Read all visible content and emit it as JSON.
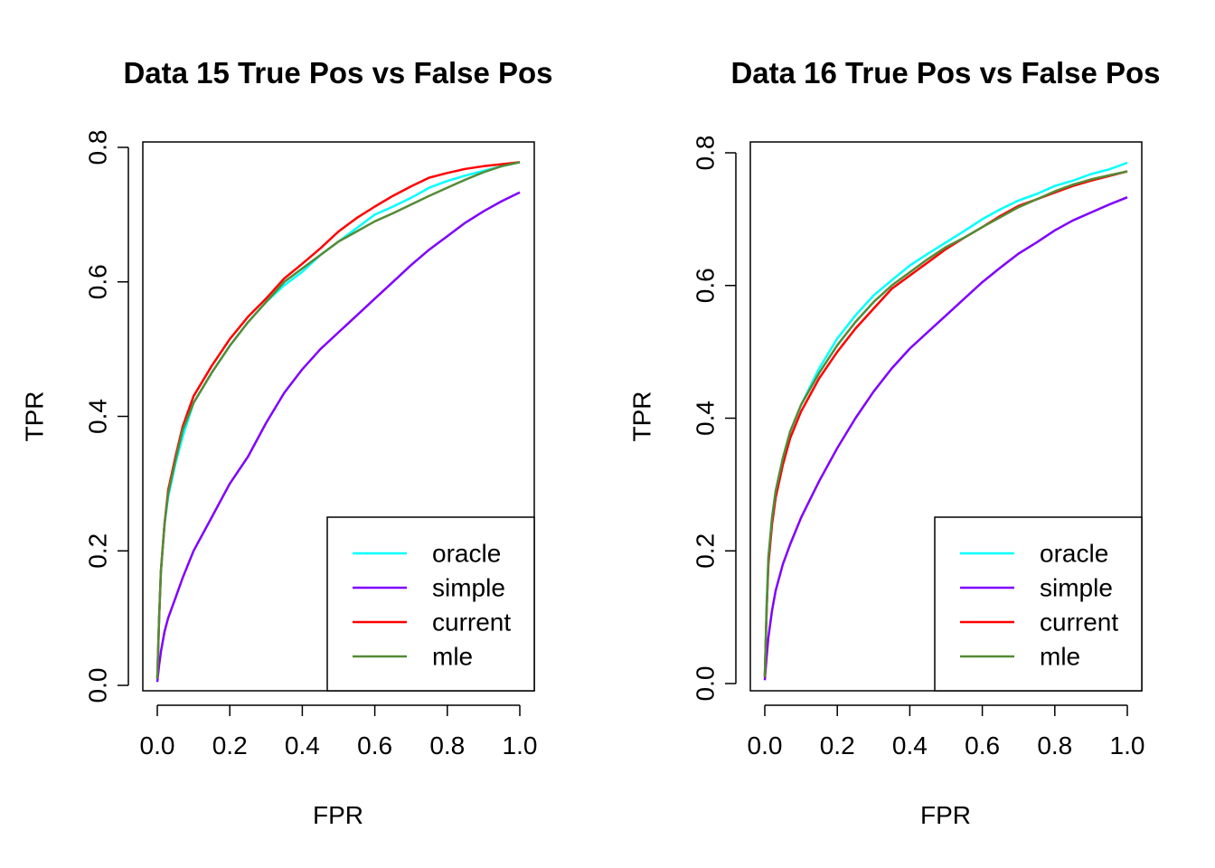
{
  "chart_data": [
    {
      "type": "line",
      "title": "Data 15 True Pos vs False Pos",
      "xlabel": "FPR",
      "ylabel": "TPR",
      "xlim": [
        0.0,
        1.0
      ],
      "ylim": [
        0.0,
        0.8
      ],
      "xticks": [
        "0.0",
        "0.2",
        "0.4",
        "0.6",
        "0.8",
        "1.0"
      ],
      "yticks": [
        "0.0",
        "0.2",
        "0.4",
        "0.6",
        "0.8"
      ],
      "grid": false,
      "legend": "bottom-right",
      "series": [
        {
          "name": "oracle",
          "color": "#00FFFF",
          "x": [
            0,
            0.005,
            0.01,
            0.02,
            0.03,
            0.05,
            0.07,
            0.1,
            0.15,
            0.2,
            0.25,
            0.3,
            0.35,
            0.4,
            0.45,
            0.5,
            0.55,
            0.6,
            0.65,
            0.7,
            0.75,
            0.8,
            0.85,
            0.9,
            0.95,
            1.0
          ],
          "y": [
            0.01,
            0.1,
            0.17,
            0.24,
            0.28,
            0.33,
            0.37,
            0.42,
            0.465,
            0.505,
            0.54,
            0.57,
            0.595,
            0.615,
            0.64,
            0.66,
            0.68,
            0.7,
            0.712,
            0.725,
            0.74,
            0.75,
            0.758,
            0.765,
            0.772,
            0.778
          ]
        },
        {
          "name": "simple",
          "color": "#8000FF",
          "x": [
            0,
            0.005,
            0.01,
            0.02,
            0.03,
            0.05,
            0.07,
            0.1,
            0.15,
            0.2,
            0.25,
            0.3,
            0.35,
            0.4,
            0.45,
            0.5,
            0.55,
            0.6,
            0.65,
            0.7,
            0.75,
            0.8,
            0.85,
            0.9,
            0.95,
            1.0
          ],
          "y": [
            0.005,
            0.03,
            0.05,
            0.08,
            0.1,
            0.13,
            0.16,
            0.2,
            0.25,
            0.3,
            0.34,
            0.39,
            0.435,
            0.47,
            0.5,
            0.525,
            0.55,
            0.575,
            0.6,
            0.625,
            0.648,
            0.668,
            0.688,
            0.705,
            0.72,
            0.733
          ]
        },
        {
          "name": "current",
          "color": "#FF0000",
          "x": [
            0,
            0.005,
            0.01,
            0.02,
            0.03,
            0.05,
            0.07,
            0.1,
            0.15,
            0.2,
            0.25,
            0.3,
            0.35,
            0.4,
            0.45,
            0.5,
            0.55,
            0.6,
            0.65,
            0.7,
            0.75,
            0.8,
            0.85,
            0.9,
            0.95,
            1.0
          ],
          "y": [
            0.01,
            0.1,
            0.17,
            0.24,
            0.29,
            0.34,
            0.385,
            0.43,
            0.475,
            0.515,
            0.548,
            0.575,
            0.605,
            0.627,
            0.65,
            0.675,
            0.695,
            0.712,
            0.728,
            0.742,
            0.755,
            0.762,
            0.768,
            0.772,
            0.775,
            0.778
          ]
        },
        {
          "name": "mle",
          "color": "#548B36",
          "x": [
            0,
            0.005,
            0.01,
            0.02,
            0.03,
            0.05,
            0.07,
            0.1,
            0.15,
            0.2,
            0.25,
            0.3,
            0.35,
            0.4,
            0.45,
            0.5,
            0.55,
            0.6,
            0.65,
            0.7,
            0.75,
            0.8,
            0.85,
            0.9,
            0.95,
            1.0
          ],
          "y": [
            0.01,
            0.1,
            0.17,
            0.24,
            0.285,
            0.335,
            0.38,
            0.42,
            0.465,
            0.505,
            0.54,
            0.57,
            0.6,
            0.62,
            0.64,
            0.66,
            0.675,
            0.69,
            0.702,
            0.715,
            0.728,
            0.74,
            0.752,
            0.763,
            0.772,
            0.778
          ]
        }
      ]
    },
    {
      "type": "line",
      "title": "Data 16 True Pos vs False Pos",
      "xlabel": "FPR",
      "ylabel": "TPR",
      "xlim": [
        0.0,
        1.0
      ],
      "ylim": [
        0.0,
        0.8
      ],
      "xticks": [
        "0.0",
        "0.2",
        "0.4",
        "0.6",
        "0.8",
        "1.0"
      ],
      "yticks": [
        "0.0",
        "0.2",
        "0.4",
        "0.6",
        "0.8"
      ],
      "grid": false,
      "legend": "bottom-right",
      "series": [
        {
          "name": "oracle",
          "color": "#00FFFF",
          "x": [
            0,
            0.005,
            0.01,
            0.02,
            0.03,
            0.05,
            0.07,
            0.1,
            0.15,
            0.2,
            0.25,
            0.3,
            0.35,
            0.4,
            0.45,
            0.5,
            0.55,
            0.6,
            0.65,
            0.7,
            0.75,
            0.8,
            0.85,
            0.9,
            0.95,
            1.0
          ],
          "y": [
            0.01,
            0.12,
            0.19,
            0.25,
            0.29,
            0.34,
            0.38,
            0.42,
            0.475,
            0.52,
            0.555,
            0.585,
            0.608,
            0.63,
            0.648,
            0.665,
            0.682,
            0.7,
            0.715,
            0.728,
            0.738,
            0.75,
            0.758,
            0.768,
            0.775,
            0.785
          ]
        },
        {
          "name": "simple",
          "color": "#8000FF",
          "x": [
            0,
            0.005,
            0.01,
            0.02,
            0.03,
            0.05,
            0.07,
            0.1,
            0.15,
            0.2,
            0.25,
            0.3,
            0.35,
            0.4,
            0.45,
            0.5,
            0.55,
            0.6,
            0.65,
            0.7,
            0.75,
            0.8,
            0.85,
            0.9,
            0.95,
            1.0
          ],
          "y": [
            0.005,
            0.04,
            0.07,
            0.11,
            0.14,
            0.18,
            0.21,
            0.25,
            0.305,
            0.355,
            0.4,
            0.44,
            0.475,
            0.505,
            0.53,
            0.555,
            0.58,
            0.605,
            0.627,
            0.648,
            0.665,
            0.683,
            0.698,
            0.71,
            0.722,
            0.733
          ]
        },
        {
          "name": "current",
          "color": "#FF0000",
          "x": [
            0,
            0.005,
            0.01,
            0.02,
            0.03,
            0.05,
            0.07,
            0.1,
            0.15,
            0.2,
            0.25,
            0.3,
            0.35,
            0.4,
            0.45,
            0.5,
            0.55,
            0.6,
            0.65,
            0.7,
            0.75,
            0.8,
            0.85,
            0.9,
            0.95,
            1.0
          ],
          "y": [
            0.01,
            0.11,
            0.18,
            0.24,
            0.28,
            0.33,
            0.37,
            0.41,
            0.46,
            0.5,
            0.535,
            0.565,
            0.595,
            0.615,
            0.635,
            0.655,
            0.672,
            0.688,
            0.705,
            0.72,
            0.73,
            0.74,
            0.75,
            0.758,
            0.765,
            0.772
          ]
        },
        {
          "name": "mle",
          "color": "#548B36",
          "x": [
            0,
            0.005,
            0.01,
            0.02,
            0.03,
            0.05,
            0.07,
            0.1,
            0.15,
            0.2,
            0.25,
            0.3,
            0.35,
            0.4,
            0.45,
            0.5,
            0.55,
            0.6,
            0.65,
            0.7,
            0.75,
            0.8,
            0.85,
            0.9,
            0.95,
            1.0
          ],
          "y": [
            0.01,
            0.11,
            0.19,
            0.25,
            0.29,
            0.34,
            0.38,
            0.42,
            0.468,
            0.51,
            0.545,
            0.575,
            0.6,
            0.62,
            0.64,
            0.658,
            0.672,
            0.688,
            0.703,
            0.718,
            0.73,
            0.742,
            0.752,
            0.76,
            0.766,
            0.772
          ]
        }
      ]
    }
  ]
}
